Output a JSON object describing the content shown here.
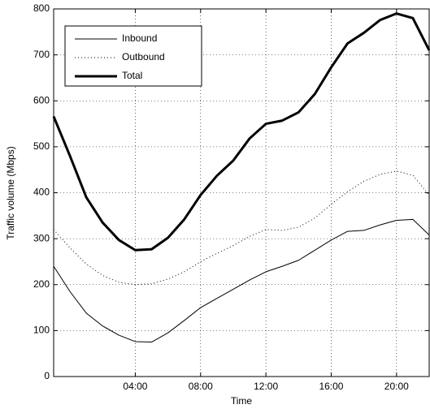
{
  "chart_data": {
    "type": "line",
    "xlabel": "Time",
    "ylabel": "Traffic volume (Mbps)",
    "x": [
      -1,
      0,
      1,
      2,
      3,
      4,
      5,
      6,
      7,
      8,
      9,
      10,
      11,
      12,
      13,
      14,
      15,
      16,
      17,
      18,
      19,
      20,
      21,
      22
    ],
    "series": [
      {
        "name": "Inbound",
        "color": "#000000",
        "width": 1,
        "dash": "none",
        "values": [
          240,
          185,
          138,
          110,
          90,
          76,
          75,
          95,
          122,
          150,
          170,
          190,
          210,
          228,
          240,
          253,
          275,
          297,
          316,
          318,
          330,
          340,
          342,
          308
        ]
      },
      {
        "name": "Outbound",
        "color": "#000000",
        "width": 1,
        "dash": "1 3",
        "values": [
          320,
          280,
          245,
          220,
          205,
          200,
          202,
          212,
          228,
          250,
          268,
          285,
          305,
          320,
          318,
          325,
          345,
          375,
          402,
          425,
          440,
          447,
          438,
          395
        ]
      },
      {
        "name": "Total",
        "color": "#000000",
        "width": 3,
        "dash": "none",
        "values": [
          566,
          480,
          390,
          335,
          297,
          275,
          277,
          302,
          342,
          395,
          437,
          470,
          518,
          550,
          557,
          575,
          615,
          673,
          725,
          748,
          776,
          790,
          780,
          710
        ]
      }
    ],
    "xlim": [
      -1,
      22
    ],
    "xticks": [
      {
        "value": 4,
        "label": "04:00"
      },
      {
        "value": 8,
        "label": "08:00"
      },
      {
        "value": 12,
        "label": "12:00"
      },
      {
        "value": 16,
        "label": "16:00"
      },
      {
        "value": 20,
        "label": "20:00"
      }
    ],
    "ylim": [
      0,
      800
    ],
    "yticks": [
      0,
      100,
      200,
      300,
      400,
      500,
      600,
      700,
      800
    ],
    "grid": true,
    "legend": "upper-left"
  }
}
